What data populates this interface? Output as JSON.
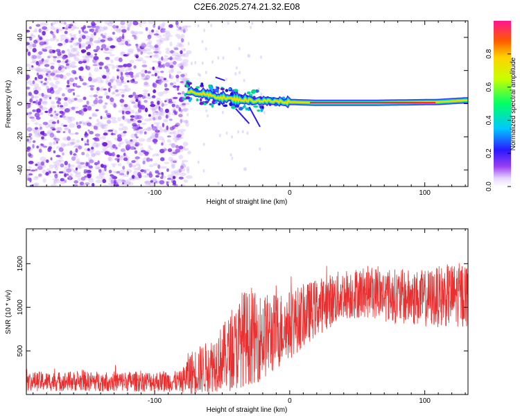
{
  "title": "C2E6.2025.274.21.32.E08",
  "chart_data": [
    {
      "type": "heatmap",
      "name": "spectrogram",
      "xlabel": "Height of straight line (km)",
      "ylabel": "Frequency (Hz)",
      "xlim": [
        -195,
        132
      ],
      "ylim": [
        -50,
        50
      ],
      "xticks": [
        -100,
        0,
        100
      ],
      "xtick_labels": [
        "-100",
        "0",
        "100"
      ],
      "yticks": [
        40,
        20,
        0,
        -20,
        -40
      ],
      "ytick_labels": [
        "40",
        "20",
        "0",
        "-20",
        "-40"
      ],
      "noise_region_end_km": -78,
      "spine": [
        {
          "x": -76,
          "f": 8
        },
        {
          "x": -60,
          "f": 5
        },
        {
          "x": -45,
          "f": 3
        },
        {
          "x": -30,
          "f": 2
        },
        {
          "x": -15,
          "f": 1.5
        },
        {
          "x": 0,
          "f": 1
        },
        {
          "x": 20,
          "f": 0.5
        },
        {
          "x": 60,
          "f": 0.5
        },
        {
          "x": 110,
          "f": 1
        },
        {
          "x": 130,
          "f": 2
        }
      ],
      "colorbar": {
        "label": "Normalized spectral amplitude",
        "range": [
          0,
          1
        ],
        "ticks": [
          0.0,
          0.2,
          0.4,
          0.6,
          0.8
        ],
        "tick_labels": [
          "0.0",
          "0.2",
          "0.4",
          "0.6",
          "0.8"
        ]
      }
    },
    {
      "type": "line",
      "name": "snr",
      "xlabel": "Height of straight line (km)",
      "ylabel": "SNR (10 * v/v)",
      "xlim": [
        -195,
        132
      ],
      "ylim": [
        0,
        1900
      ],
      "xticks": [
        -100,
        0,
        100
      ],
      "xtick_labels": [
        "-100",
        "0",
        "100"
      ],
      "yticks": [
        500,
        1000,
        1500
      ],
      "ytick_labels": [
        "500",
        "1000",
        "1500"
      ],
      "color": "#e83030",
      "envelope": {
        "x": [
          -195,
          -80,
          -75,
          -60,
          -50,
          -40,
          -35,
          -25,
          -15,
          0,
          20,
          40,
          60,
          80,
          100,
          115,
          132
        ],
        "mean": [
          150,
          150,
          230,
          320,
          420,
          520,
          650,
          650,
          680,
          800,
          1000,
          1150,
          1180,
          1120,
          1100,
          1130,
          1150
        ],
        "spread": [
          110,
          120,
          260,
          300,
          380,
          480,
          560,
          520,
          480,
          400,
          330,
          290,
          300,
          320,
          330,
          360,
          380
        ]
      }
    }
  ]
}
